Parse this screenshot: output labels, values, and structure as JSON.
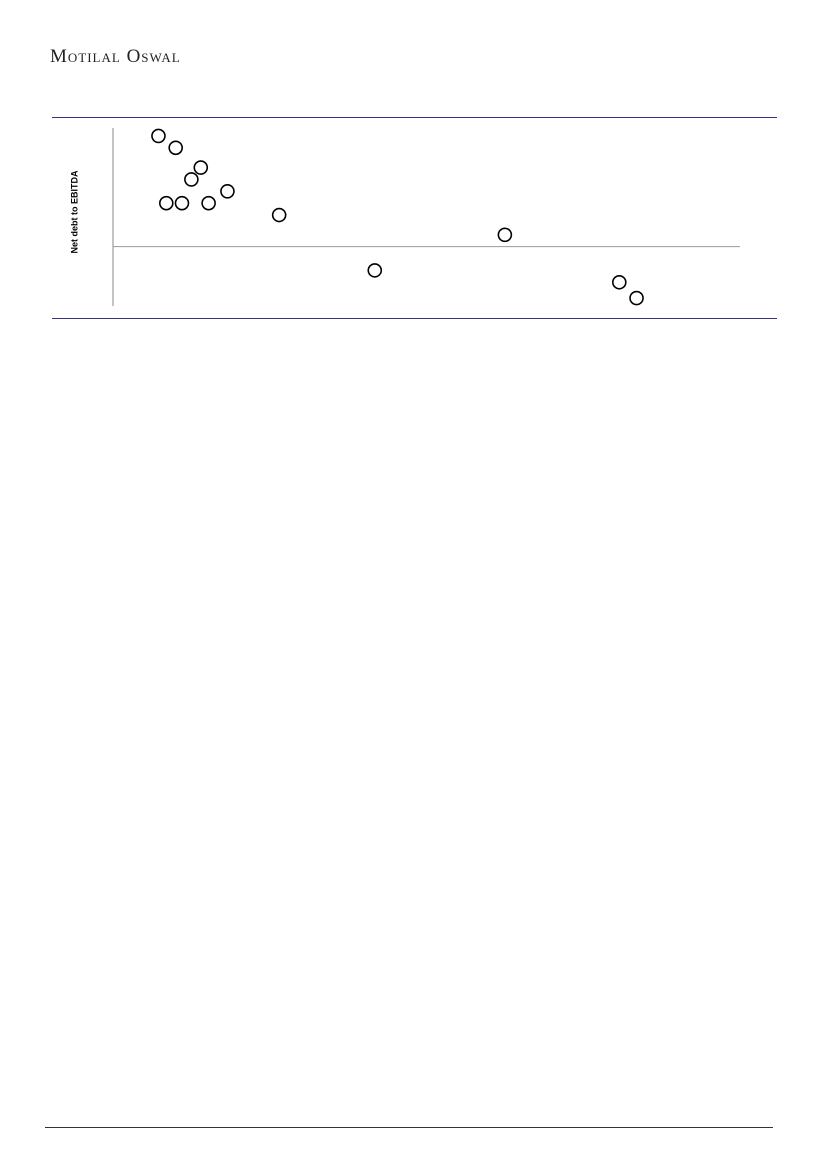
{
  "header": {
    "brand": "Motilal Oswal"
  },
  "chart_data": {
    "type": "scatter",
    "y_label": "Net debt to EBITDA",
    "x": [
      2.9,
      4.0,
      5.6,
      5.0,
      7.3,
      3.4,
      4.4,
      6.1,
      10.6,
      25.0,
      16.7,
      32.3,
      33.4
    ],
    "values": [
      2.8,
      2.5,
      2.0,
      1.7,
      1.4,
      1.1,
      1.1,
      1.1,
      0.8,
      0.3,
      -0.6,
      -0.9,
      -1.3
    ],
    "xlim": [
      0,
      40
    ],
    "ylim": [
      -1.5,
      3.0
    ],
    "reference_lines": [
      0
    ],
    "marker_color": "#000000"
  }
}
